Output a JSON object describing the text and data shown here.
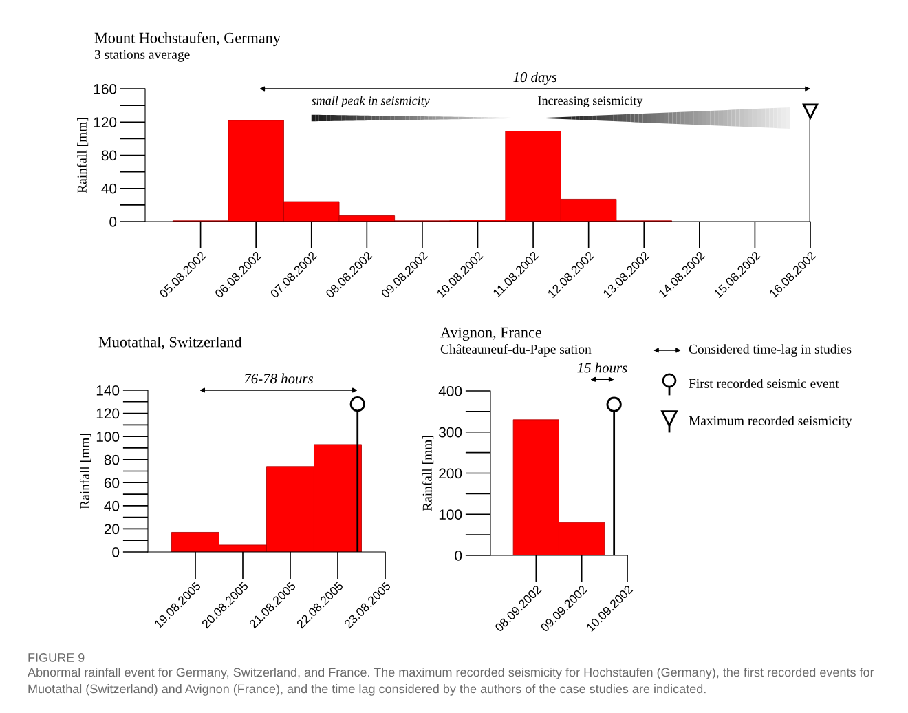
{
  "chart_data": [
    {
      "type": "bar",
      "title": "Mount Hochstaufen, Germany",
      "subtitle": "3 stations average",
      "ylabel": "Rainfall [mm]",
      "series": [
        {
          "type": "bar",
          "color": "#ff0000",
          "x": [
            "2002-08-05",
            "2002-08-06",
            "2002-08-07",
            "2002-08-08",
            "2002-08-09",
            "2002-08-10",
            "2002-08-11",
            "2002-08-12",
            "2002-08-13"
          ],
          "values": [
            1,
            122,
            24,
            7,
            1,
            2,
            109,
            27,
            1
          ]
        },
        {
          "type": "lollipop",
          "color": "#000000",
          "marker": "triangle",
          "x": [
            "2002-08-16"
          ],
          "values": [
            133
          ]
        }
      ],
      "xlim": [
        "2002-08-04",
        "2002-08-16"
      ],
      "xticks": [
        {
          "value": "2002-08-05",
          "label": "05.08.2002"
        },
        {
          "value": "2002-08-06",
          "label": "06.08.2002"
        },
        {
          "value": "2002-08-07",
          "label": "07.08.2002"
        },
        {
          "value": "2002-08-08",
          "label": "08.08.2002"
        },
        {
          "value": "2002-08-09",
          "label": "09.08.2002"
        },
        {
          "value": "2002-08-10",
          "label": "10.08.2002"
        },
        {
          "value": "2002-08-11",
          "label": "11.08.2002"
        },
        {
          "value": "2002-08-12",
          "label": "12.08.2002"
        },
        {
          "value": "2002-08-13",
          "label": "13.08.2002"
        },
        {
          "value": "2002-08-14",
          "label": "14.08.2002"
        },
        {
          "value": "2002-08-15",
          "label": "15.08.2002"
        },
        {
          "value": "2002-08-16",
          "label": "16.08.2002"
        }
      ],
      "ylim": [
        0,
        160
      ],
      "yticks": [
        0,
        40,
        80,
        120,
        160
      ],
      "annotations": [
        "10 days",
        "small peak in seismicity",
        "Increasing seismicity"
      ],
      "grid": false,
      "legend": false
    },
    {
      "type": "bar",
      "title": "Muotathal, Switzerland",
      "ylabel": "Rainfall [mm]",
      "series": [
        {
          "type": "bar",
          "color": "#ff0000",
          "x": [
            "2005-08-19",
            "2005-08-20",
            "2005-08-21",
            "2005-08-22"
          ],
          "values": [
            17,
            6,
            74,
            93
          ]
        },
        {
          "type": "lollipop",
          "color": "#000000",
          "marker": "circle",
          "x": [
            "2005-08-22T10:00"
          ],
          "values": [
            128
          ]
        }
      ],
      "xlim": [
        "2005-08-18",
        "2005-08-23"
      ],
      "xticks": [
        {
          "value": "2005-08-19",
          "label": "19.08.2005"
        },
        {
          "value": "2005-08-20",
          "label": "20.08.2005"
        },
        {
          "value": "2005-08-21",
          "label": "21.08.2005"
        },
        {
          "value": "2005-08-22",
          "label": "22.08.2005"
        },
        {
          "value": "2005-08-23",
          "label": "23.08.2005"
        }
      ],
      "ylim": [
        0,
        140
      ],
      "yticks": [
        0,
        20,
        40,
        60,
        80,
        100,
        120,
        140
      ],
      "annotations": [
        "76-78 hours"
      ],
      "grid": false,
      "legend": false
    },
    {
      "type": "bar",
      "title": "Avignon, France",
      "subtitle": "Châteauneuf-du-Pape sation",
      "ylabel": "Rainfall [mm]",
      "series": [
        {
          "type": "bar",
          "color": "#ff0000",
          "x": [
            "2002-09-08",
            "2002-09-09"
          ],
          "values": [
            330,
            80
          ]
        },
        {
          "type": "lollipop",
          "color": "#000000",
          "marker": "circle",
          "x": [
            "2002-09-09T17:00"
          ],
          "values": [
            367
          ]
        }
      ],
      "xlim": [
        "2002-09-07",
        "2002-09-10"
      ],
      "xticks": [
        {
          "value": "2002-09-08",
          "label": "08.09.2002"
        },
        {
          "value": "2002-09-09",
          "label": "09.09.2002"
        },
        {
          "value": "2002-09-10",
          "label": "10.09.2002"
        }
      ],
      "ylim": [
        0,
        400
      ],
      "yticks": [
        0,
        100,
        200,
        300,
        400
      ],
      "annotations": [
        "15 hours"
      ],
      "grid": false,
      "legend": false
    },
    {
      "type": "other",
      "annotations": [
        "Considered time-lag in studies",
        "First recorded seismic event",
        "Maximum recorded seismicity"
      ]
    },
    {
      "type": "other",
      "annotations": [
        "FIGURE 9",
        "Abnormal rainfall event for Germany, Switzerland, and France. The maximum recorded seismicity for Hochstaufen (Germany), the first recorded events for Muotathal (Switzerland) and Avignon (France), and the time lag considered by the authors of the case studies are indicated."
      ]
    }
  ]
}
